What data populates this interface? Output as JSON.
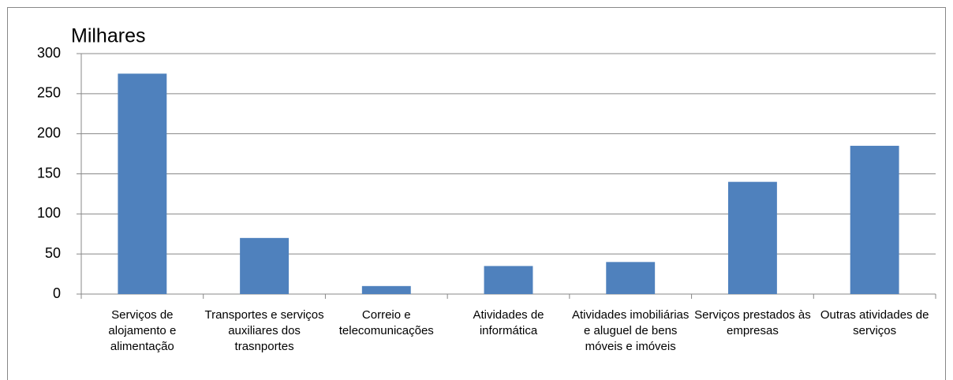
{
  "chart_data": {
    "type": "bar",
    "y_label": "Milhares",
    "categories": [
      "Serviços de alojamento e alimentação",
      "Transportes e serviços auxiliares dos trasnportes",
      "Correio e telecomunicações",
      "Atividades de informática",
      "Atividades imobiliárias e aluguel de bens móveis e imóveis",
      "Serviços prestados às empresas",
      "Outras atividades de serviços"
    ],
    "values": [
      275,
      70,
      10,
      35,
      40,
      140,
      185
    ],
    "color": "#4f81bd",
    "ylim": [
      0,
      300
    ],
    "yticks": [
      0,
      50,
      100,
      150,
      200,
      250,
      300
    ],
    "grid": true
  }
}
